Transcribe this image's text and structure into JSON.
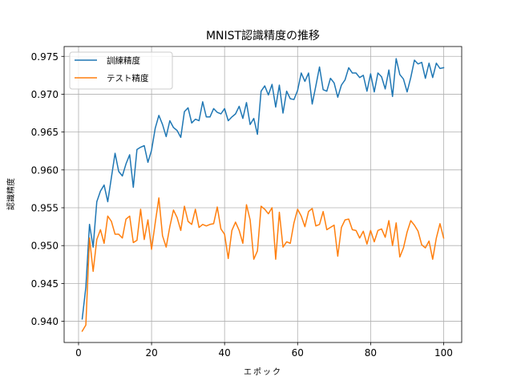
{
  "chart_data": {
    "type": "line",
    "title": "MNIST認識精度の推移",
    "xlabel": "エポック",
    "ylabel": "認識精度",
    "xlim": [
      -3.95,
      104.95
    ],
    "ylim": [
      0.9372,
      0.9763
    ],
    "xticks": [
      0,
      20,
      40,
      60,
      80,
      100
    ],
    "yticks": [
      0.94,
      0.945,
      0.95,
      0.955,
      0.96,
      0.965,
      0.97,
      0.975
    ],
    "ytick_labels": [
      "0.940",
      "0.945",
      "0.950",
      "0.955",
      "0.960",
      "0.965",
      "0.970",
      "0.975"
    ],
    "grid": true,
    "legend_position": "top-left",
    "x": [
      1,
      2,
      3,
      4,
      5,
      6,
      7,
      8,
      9,
      10,
      11,
      12,
      13,
      14,
      15,
      16,
      17,
      18,
      19,
      20,
      21,
      22,
      23,
      24,
      25,
      26,
      27,
      28,
      29,
      30,
      31,
      32,
      33,
      34,
      35,
      36,
      37,
      38,
      39,
      40,
      41,
      42,
      43,
      44,
      45,
      46,
      47,
      48,
      49,
      50,
      51,
      52,
      53,
      54,
      55,
      56,
      57,
      58,
      59,
      60,
      61,
      62,
      63,
      64,
      65,
      66,
      67,
      68,
      69,
      70,
      71,
      72,
      73,
      74,
      75,
      76,
      77,
      78,
      79,
      80,
      81,
      82,
      83,
      84,
      85,
      86,
      87,
      88,
      89,
      90,
      91,
      92,
      93,
      94,
      95,
      96,
      97,
      98,
      99,
      100
    ],
    "series": [
      {
        "name": "訓練精度",
        "color": "#1f77b4",
        "values": [
          0.9403,
          0.9445,
          0.9528,
          0.9498,
          0.9558,
          0.9572,
          0.958,
          0.9558,
          0.959,
          0.9622,
          0.9598,
          0.9592,
          0.9608,
          0.962,
          0.9577,
          0.9627,
          0.963,
          0.9632,
          0.961,
          0.9626,
          0.9655,
          0.9672,
          0.966,
          0.9644,
          0.9665,
          0.9656,
          0.9652,
          0.9643,
          0.9677,
          0.9682,
          0.9662,
          0.9667,
          0.9665,
          0.969,
          0.967,
          0.967,
          0.9681,
          0.9676,
          0.9674,
          0.9681,
          0.9665,
          0.967,
          0.9674,
          0.9684,
          0.9668,
          0.9689,
          0.966,
          0.9668,
          0.9647,
          0.9704,
          0.9711,
          0.9699,
          0.9713,
          0.9683,
          0.9712,
          0.9675,
          0.9704,
          0.9694,
          0.9693,
          0.9705,
          0.9728,
          0.9717,
          0.9728,
          0.9687,
          0.9711,
          0.9736,
          0.9706,
          0.9704,
          0.9721,
          0.9715,
          0.9696,
          0.9712,
          0.9719,
          0.9735,
          0.9728,
          0.9728,
          0.9722,
          0.9725,
          0.9704,
          0.9727,
          0.9703,
          0.9728,
          0.9723,
          0.9707,
          0.9732,
          0.9697,
          0.9747,
          0.9726,
          0.972,
          0.9703,
          0.9722,
          0.9745,
          0.974,
          0.9742,
          0.9721,
          0.9741,
          0.9722,
          0.9741,
          0.9734,
          0.9735
        ]
      },
      {
        "name": "テスト精度",
        "color": "#ff7f0e",
        "values": [
          0.9387,
          0.9395,
          0.951,
          0.9466,
          0.9508,
          0.9521,
          0.9503,
          0.9539,
          0.9532,
          0.9515,
          0.9515,
          0.951,
          0.9535,
          0.9539,
          0.9504,
          0.9507,
          0.9548,
          0.9508,
          0.9534,
          0.9495,
          0.953,
          0.9563,
          0.9513,
          0.9498,
          0.9525,
          0.9547,
          0.9537,
          0.952,
          0.9552,
          0.9532,
          0.9528,
          0.9548,
          0.9524,
          0.9528,
          0.9526,
          0.9528,
          0.9529,
          0.9551,
          0.9522,
          0.9515,
          0.9483,
          0.952,
          0.9531,
          0.952,
          0.9503,
          0.9554,
          0.9534,
          0.9482,
          0.9493,
          0.9552,
          0.9548,
          0.9542,
          0.955,
          0.9482,
          0.9544,
          0.9498,
          0.9505,
          0.9503,
          0.953,
          0.9548,
          0.9539,
          0.9525,
          0.9545,
          0.9549,
          0.9526,
          0.9528,
          0.9545,
          0.9521,
          0.9524,
          0.9527,
          0.9486,
          0.9524,
          0.9534,
          0.9535,
          0.9521,
          0.952,
          0.951,
          0.9519,
          0.9502,
          0.952,
          0.9505,
          0.952,
          0.9522,
          0.9511,
          0.9533,
          0.95,
          0.953,
          0.9485,
          0.9497,
          0.9518,
          0.9533,
          0.9527,
          0.9519,
          0.9501,
          0.9497,
          0.9506,
          0.9482,
          0.951,
          0.9529,
          0.951
        ]
      }
    ]
  }
}
